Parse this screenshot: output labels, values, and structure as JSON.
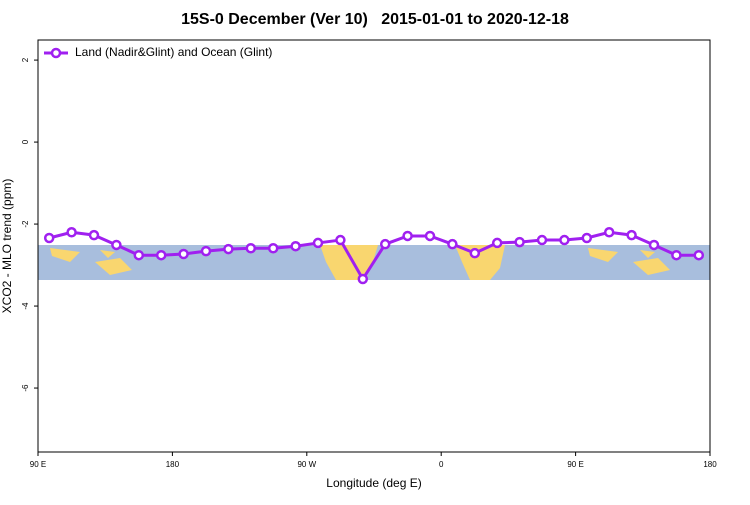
{
  "chart_data": {
    "type": "line",
    "title": "15S-0 December (Ver 10)   2015-01-01 to 2020-12-18",
    "x_label": "Longitude (deg E)",
    "y_label": "XCO2 - MLO trend (ppm)",
    "x": [
      97.5,
      112.5,
      127.5,
      142.5,
      157.5,
      172.5,
      187.5,
      202.5,
      217.5,
      232.5,
      247.5,
      262.5,
      277.5,
      292.5,
      307.5,
      322.5,
      337.5,
      352.5,
      367.5,
      382.5,
      397.5,
      412.5,
      427.5,
      442.5,
      457.5,
      472.5,
      487.5,
      502.5,
      517.5,
      532.5
    ],
    "series": [
      {
        "name": "Land (Nadir&Glint) and Ocean (Glint)",
        "color": "#a020f0",
        "values": [
          -2.34,
          -2.2,
          -2.27,
          -2.51,
          -2.76,
          -2.76,
          -2.73,
          -2.66,
          -2.61,
          -2.59,
          -2.59,
          -2.54,
          -2.46,
          -2.39,
          -3.34,
          -2.49,
          -2.29,
          -2.29,
          -2.49,
          -2.71,
          -2.46,
          -2.44,
          -2.39,
          -2.39,
          -2.34,
          -2.2,
          -2.27,
          -2.51,
          -2.76,
          -2.76
        ]
      }
    ],
    "xlim": [
      90,
      540
    ],
    "xticks": [
      {
        "value": 90,
        "label": "90 E"
      },
      {
        "value": 180,
        "label": "180"
      },
      {
        "value": 270,
        "label": "90 W"
      },
      {
        "value": 360,
        "label": "0"
      },
      {
        "value": 450,
        "label": "90 E"
      },
      {
        "value": 540,
        "label": "180"
      }
    ],
    "ylim": [
      -7.56,
      2.49
    ],
    "yticks": [
      -6,
      -4,
      -2,
      0,
      2
    ],
    "legend": "top-left"
  }
}
